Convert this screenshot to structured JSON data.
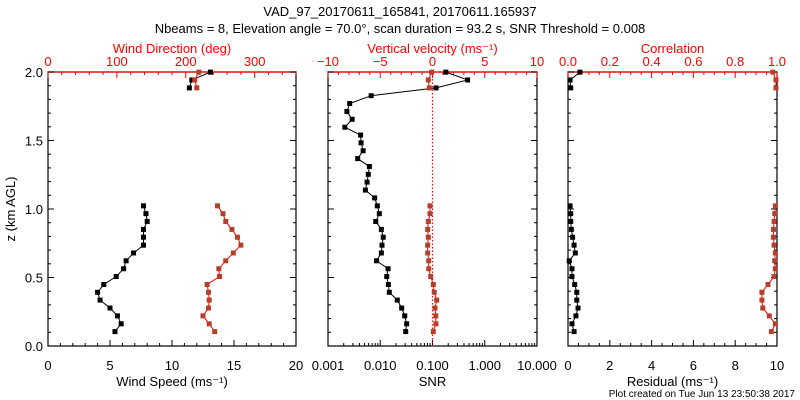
{
  "header": {
    "title_line1": "VAD_97_20170611_165841, 20170611.165937",
    "title_line2": "Nbeams = 8, Elevation angle = 70.0°, scan duration = 93.2 s, SNR Threshold = 0.008"
  },
  "footer": "Plot created on Tue Jun 13 23:50:38 2017",
  "colors": {
    "axis_red": "#ff0000",
    "marker_red": "#b5402a",
    "black": "#000000"
  },
  "chart_data": [
    {
      "type": "line",
      "ylabel": "z (km AGL)",
      "ylim": [
        0,
        2
      ],
      "yticks": [
        "0.0",
        "0.5",
        "1.0",
        "1.5",
        "2.0"
      ],
      "xlabel": "Wind Speed (ms⁻¹)",
      "xlim": [
        0,
        20
      ],
      "xticks": [
        "0",
        "5",
        "10",
        "15",
        "20"
      ],
      "top_xlabel": "Wind Direction (deg)",
      "top_xlim": [
        0,
        360
      ],
      "top_xticks": [
        "0",
        "100",
        "200",
        "300"
      ],
      "z": [
        0.105,
        0.162,
        0.22,
        0.277,
        0.335,
        0.392,
        0.449,
        0.507,
        0.564,
        0.622,
        0.679,
        0.736,
        0.794,
        0.851,
        0.909,
        0.966,
        1.023,
        1.081,
        1.138,
        1.196,
        1.253,
        1.31,
        1.368,
        1.425,
        1.483,
        1.54,
        1.597,
        1.655,
        1.712,
        1.77,
        1.827,
        1.884,
        1.942,
        1.999
      ],
      "series": [
        {
          "name": "Wind Speed",
          "axis": "bottom",
          "color": "black",
          "values": [
            5.4,
            5.9,
            5.6,
            5.0,
            4.2,
            4.0,
            4.5,
            5.5,
            6.1,
            6.3,
            6.9,
            7.7,
            7.7,
            7.7,
            8.0,
            7.9,
            7.7,
            null,
            null,
            null,
            null,
            null,
            null,
            null,
            null,
            null,
            null,
            null,
            null,
            null,
            null,
            11.4,
            11.6,
            13.1
          ]
        },
        {
          "name": "Wind Direction",
          "axis": "top",
          "color": "red",
          "values": [
            242,
            234,
            225,
            233,
            234,
            233,
            231,
            249,
            248,
            258,
            269,
            280,
            275,
            267,
            258,
            254,
            246,
            null,
            null,
            null,
            null,
            null,
            null,
            null,
            null,
            null,
            null,
            null,
            null,
            null,
            null,
            216,
            213,
            219
          ]
        }
      ]
    },
    {
      "type": "line",
      "ylim": [
        0,
        2
      ],
      "xlabel": "SNR",
      "xscale": "log",
      "xlim": [
        0.001,
        10
      ],
      "xticks": [
        "0.001",
        "0.010",
        "0.100",
        "1.000",
        "10.000"
      ],
      "top_xlabel": "Vertical velocity (ms⁻¹)",
      "top_xlim": [
        -10,
        10
      ],
      "top_xticks": [
        "−10",
        "−5",
        "0",
        "5",
        "10"
      ],
      "threshold_line": {
        "axis": "top",
        "value": 0
      },
      "z": [
        0.105,
        0.162,
        0.22,
        0.277,
        0.335,
        0.392,
        0.449,
        0.507,
        0.564,
        0.622,
        0.679,
        0.736,
        0.794,
        0.851,
        0.909,
        0.966,
        1.023,
        1.081,
        1.138,
        1.196,
        1.253,
        1.31,
        1.368,
        1.425,
        1.483,
        1.54,
        1.597,
        1.655,
        1.712,
        1.77,
        1.827,
        1.884,
        1.942,
        1.999
      ],
      "series": [
        {
          "name": "SNR",
          "axis": "bottom",
          "color": "black",
          "values": [
            0.0307,
            0.032,
            0.0294,
            0.0257,
            0.0212,
            0.0149,
            0.0143,
            0.0133,
            0.0141,
            0.0085,
            0.0105,
            0.0108,
            0.0114,
            0.0105,
            0.0082,
            0.0096,
            0.0088,
            0.0078,
            0.0052,
            0.0056,
            0.0059,
            0.0062,
            0.0037,
            0.0047,
            0.0043,
            0.0042,
            0.0021,
            0.0029,
            0.0023,
            0.0026,
            0.0067,
            0.117,
            0.47,
            0.18
          ]
        },
        {
          "name": "Vertical velocity",
          "axis": "top",
          "color": "red",
          "values": [
            0.08,
            0.33,
            0.31,
            0.24,
            0.4,
            0.17,
            0.08,
            -0.17,
            -0.36,
            -0.36,
            -0.46,
            -0.46,
            -0.4,
            -0.46,
            -0.4,
            -0.24,
            -0.24,
            null,
            null,
            null,
            null,
            null,
            null,
            null,
            null,
            null,
            null,
            null,
            null,
            null,
            null,
            -0.3,
            -0.4,
            -0.08
          ]
        }
      ]
    },
    {
      "type": "line",
      "ylim": [
        0,
        2
      ],
      "xlabel": "Residual (ms⁻¹)",
      "xlim": [
        0,
        10
      ],
      "xticks": [
        "0",
        "2",
        "4",
        "6",
        "8",
        "10"
      ],
      "top_xlabel": "Correlation",
      "top_xlim": [
        0,
        1
      ],
      "top_xticks": [
        "0.0",
        "0.2",
        "0.4",
        "0.6",
        "0.8",
        "1.0"
      ],
      "z": [
        0.105,
        0.162,
        0.22,
        0.277,
        0.335,
        0.392,
        0.449,
        0.507,
        0.564,
        0.622,
        0.679,
        0.736,
        0.794,
        0.851,
        0.909,
        0.966,
        1.023,
        1.081,
        1.138,
        1.196,
        1.253,
        1.31,
        1.368,
        1.425,
        1.483,
        1.54,
        1.597,
        1.655,
        1.712,
        1.77,
        1.827,
        1.884,
        1.942,
        1.999
      ],
      "series": [
        {
          "name": "Residual",
          "axis": "bottom",
          "color": "black",
          "values": [
            0.29,
            0.19,
            0.38,
            0.48,
            0.42,
            0.42,
            0.32,
            0.19,
            0.19,
            0.06,
            0.35,
            0.29,
            0.22,
            0.16,
            0.13,
            0.13,
            0.1,
            null,
            null,
            null,
            null,
            null,
            null,
            null,
            null,
            null,
            null,
            null,
            null,
            null,
            null,
            0.13,
            0.1,
            0.57
          ]
        },
        {
          "name": "Correlation",
          "axis": "top",
          "color": "red",
          "values": [
            0.973,
            0.992,
            0.963,
            0.932,
            0.928,
            0.928,
            0.957,
            0.986,
            0.992,
            0.989,
            0.992,
            0.986,
            0.983,
            0.983,
            0.986,
            0.989,
            0.992,
            null,
            null,
            null,
            null,
            null,
            null,
            null,
            null,
            null,
            null,
            null,
            null,
            null,
            null,
            0.995,
            0.995,
            0.98
          ]
        }
      ]
    }
  ]
}
